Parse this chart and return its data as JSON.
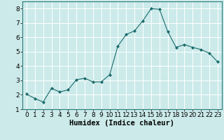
{
  "x": [
    0,
    1,
    2,
    3,
    4,
    5,
    6,
    7,
    8,
    9,
    10,
    11,
    12,
    13,
    14,
    15,
    16,
    17,
    18,
    19,
    20,
    21,
    22,
    23
  ],
  "y": [
    2.05,
    1.75,
    1.5,
    2.45,
    2.2,
    2.35,
    3.05,
    3.15,
    2.9,
    2.9,
    3.4,
    5.4,
    6.2,
    6.45,
    7.15,
    8.0,
    7.95,
    6.4,
    5.3,
    5.5,
    5.3,
    5.15,
    4.9,
    4.3
  ],
  "line_color": "#1a6b6b",
  "marker": "D",
  "marker_size": 2.0,
  "bg_color": "#cceaea",
  "grid_color": "#ffffff",
  "grid_minor_color": "#e8f8f8",
  "xlabel": "Humidex (Indice chaleur)",
  "xlabel_fontsize": 7.5,
  "tick_fontsize": 6.5,
  "ylim": [
    1,
    8.5
  ],
  "xlim": [
    -0.5,
    23.5
  ],
  "yticks": [
    1,
    2,
    3,
    4,
    5,
    6,
    7,
    8
  ],
  "xticks": [
    0,
    1,
    2,
    3,
    4,
    5,
    6,
    7,
    8,
    9,
    10,
    11,
    12,
    13,
    14,
    15,
    16,
    17,
    18,
    19,
    20,
    21,
    22,
    23
  ]
}
